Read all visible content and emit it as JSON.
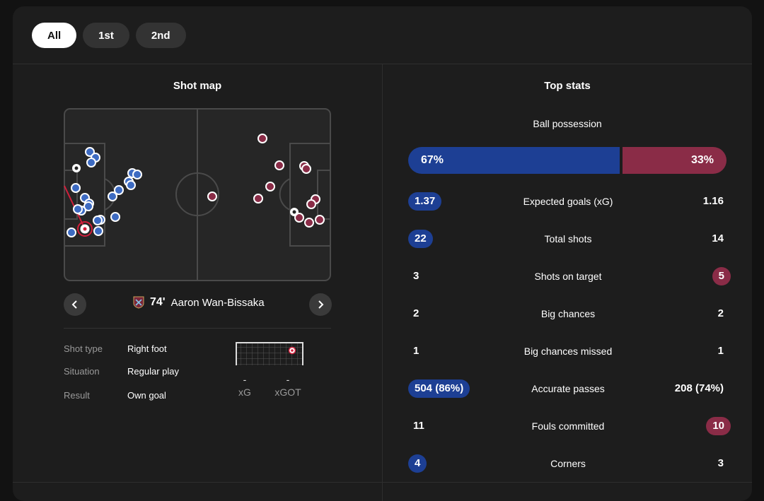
{
  "tabs": [
    {
      "label": "All",
      "active": true
    },
    {
      "label": "1st",
      "active": false
    },
    {
      "label": "2nd",
      "active": false
    }
  ],
  "shot_map": {
    "title": "Shot map",
    "home_color": "#3d6bc2",
    "away_color": "#8a2c47",
    "selected_shot": {
      "minute": "74'",
      "player": "Aaron Wan-Bissaka",
      "team_icon": "west-ham-crest-icon"
    },
    "details": [
      {
        "label": "Shot type",
        "value": "Right foot"
      },
      {
        "label": "Situation",
        "value": "Regular play"
      },
      {
        "label": "Result",
        "value": "Own goal"
      }
    ],
    "xg": {
      "value": "-",
      "label": "xG"
    },
    "xgot": {
      "value": "-",
      "label": "xGOT"
    }
  },
  "top_stats": {
    "title": "Top stats",
    "possession": {
      "label": "Ball possession",
      "home": "67%",
      "away": "33%",
      "home_pct": 67
    },
    "rows": [
      {
        "label": "Expected goals (xG)",
        "home": "1.37",
        "away": "1.16",
        "highlight": "home"
      },
      {
        "label": "Total shots",
        "home": "22",
        "away": "14",
        "highlight": "home"
      },
      {
        "label": "Shots on target",
        "home": "3",
        "away": "5",
        "highlight": "away"
      },
      {
        "label": "Big chances",
        "home": "2",
        "away": "2",
        "highlight": "none"
      },
      {
        "label": "Big chances missed",
        "home": "1",
        "away": "1",
        "highlight": "none"
      },
      {
        "label": "Accurate passes",
        "home": "504 (86%)",
        "away": "208 (74%)",
        "highlight": "home"
      },
      {
        "label": "Fouls committed",
        "home": "11",
        "away": "10",
        "highlight": "away"
      },
      {
        "label": "Corners",
        "home": "4",
        "away": "3",
        "highlight": "home"
      }
    ]
  }
}
